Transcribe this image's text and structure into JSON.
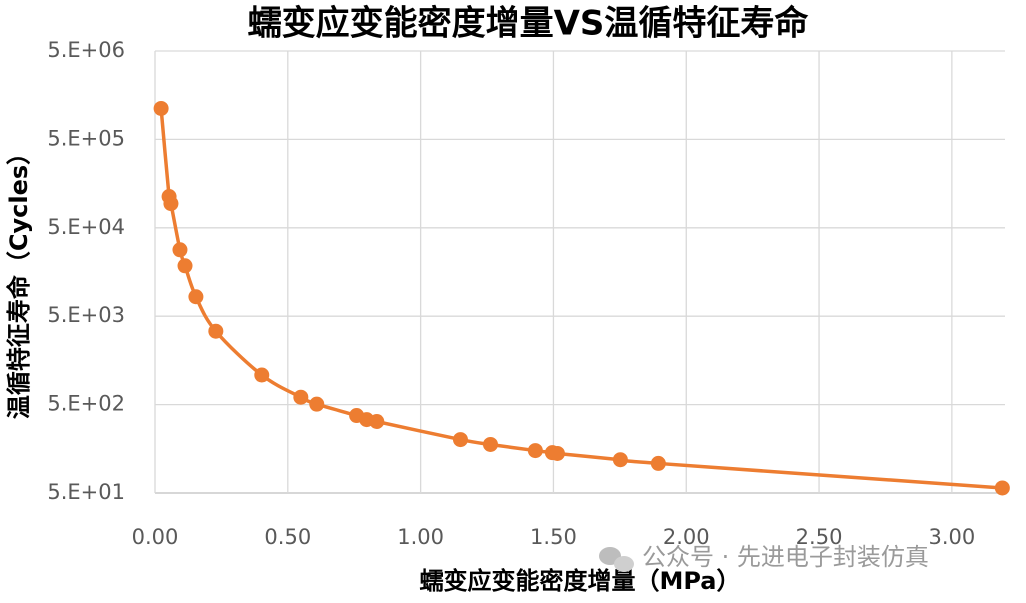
{
  "chart_data": {
    "type": "scatter",
    "title": "蠕变应变能密度增量VS温循特征寿命",
    "x_label": "蠕变应变能密度增量（MPa）",
    "y_label": "温循特征寿命（Cycles）",
    "annotation": "公众号 · 先进电子封装仿真",
    "log_y": true,
    "grid": true,
    "smooth_line": true,
    "xlim": [
      0,
      3.2
    ],
    "ylim": [
      50,
      5000000
    ],
    "xticks": [
      {
        "value": 0,
        "label": "0.00"
      },
      {
        "value": 0.5,
        "label": "0.50"
      },
      {
        "value": 1,
        "label": "1.00"
      },
      {
        "value": 1.5,
        "label": "1.50"
      },
      {
        "value": 2,
        "label": "2.00"
      },
      {
        "value": 2.5,
        "label": "2.50"
      },
      {
        "value": 3,
        "label": "3.00"
      }
    ],
    "yticks": [
      {
        "value": 50,
        "label": "5.E+01"
      },
      {
        "value": 500,
        "label": "5.E+02"
      },
      {
        "value": 5000,
        "label": "5.E+03"
      },
      {
        "value": 50000,
        "label": "5.E+04"
      },
      {
        "value": 500000,
        "label": "5.E+05"
      },
      {
        "value": 5000000,
        "label": "5.E+06"
      }
    ],
    "series": [
      {
        "name": "温循特征寿命",
        "color": "#ed7d31",
        "x": [
          0.023,
          0.053,
          0.06,
          0.094,
          0.113,
          0.154,
          0.229,
          0.402,
          0.549,
          0.609,
          0.759,
          0.797,
          0.835,
          1.15,
          1.263,
          1.432,
          1.496,
          1.515,
          1.752,
          1.895,
          3.19
        ],
        "values": [
          1120000,
          113000,
          94000,
          28200,
          18600,
          8300,
          3380,
          1080,
          606,
          506,
          376,
          338,
          322,
          201,
          177,
          151,
          143,
          140,
          119,
          108,
          57
        ]
      }
    ]
  }
}
